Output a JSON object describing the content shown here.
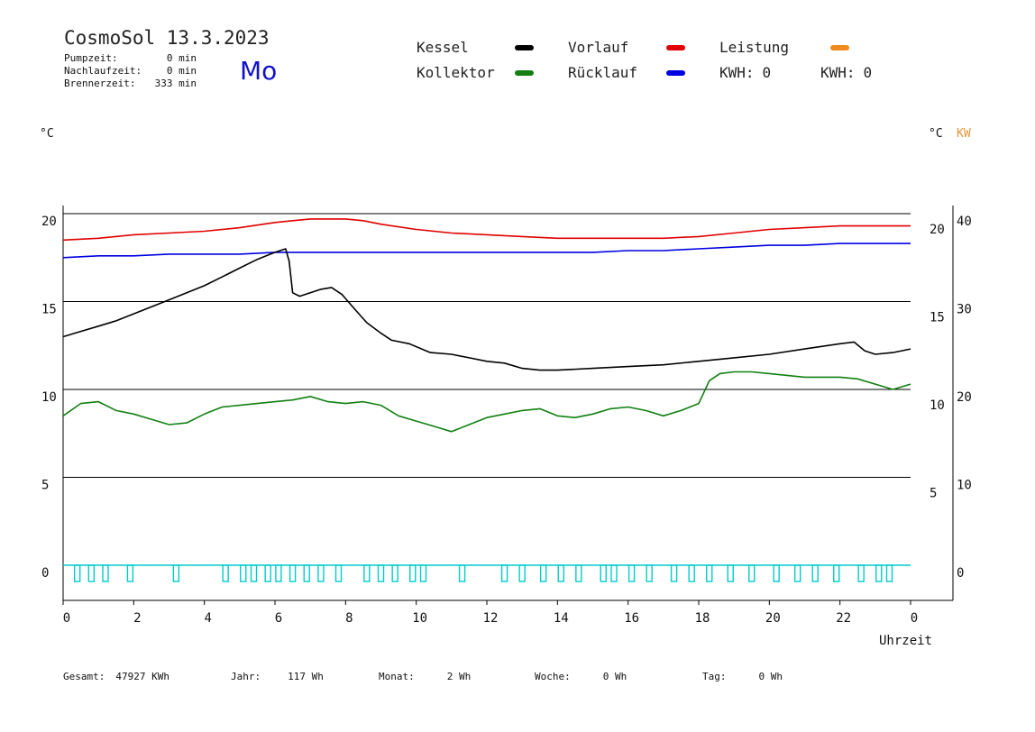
{
  "header": {
    "title": "CosmoSol 13.3.2023",
    "day": "Mo",
    "day_color": "#1111cc",
    "stats": [
      {
        "label": "Pumpzeit:",
        "value": "0 min"
      },
      {
        "label": "Nachlaufzeit:",
        "value": "0 min"
      },
      {
        "label": "Brennerzeit:",
        "value": "333 min"
      }
    ]
  },
  "legend": [
    {
      "label": "Kessel",
      "color": "#000000"
    },
    {
      "label": "Vorlauf",
      "color": "#e00000"
    },
    {
      "label": "Leistung",
      "color": "#f08a1c"
    },
    {
      "label": "Kollektor",
      "color": "#118011"
    },
    {
      "label": "Rücklauf",
      "color": "#0000e0"
    }
  ],
  "kwh": [
    {
      "label": "KWH:",
      "value": "0",
      "color": "#e8963a"
    },
    {
      "label": "KWH:",
      "value": "0",
      "color": "#993399"
    }
  ],
  "axis_units": {
    "left": "°C",
    "right": "°C",
    "right_power": "KW",
    "power_color": "#e8963a",
    "x_title": "Uhrzeit"
  },
  "footer": [
    {
      "label": "Gesamt:",
      "value": "47927 KWh"
    },
    {
      "label": "Jahr:",
      "value": "117 Wh"
    },
    {
      "label": "Monat:",
      "value": "2 Wh"
    },
    {
      "label": "Woche:",
      "value": "0 Wh"
    },
    {
      "label": "Tag:",
      "value": "0 Wh"
    }
  ],
  "chart_data": {
    "type": "line",
    "xlabel": "Uhrzeit",
    "ylabel": "°C",
    "xlim": [
      0,
      24
    ],
    "ylim_left": [
      -1.5,
      20.5
    ],
    "ylim_right_power": [
      0,
      40
    ],
    "grid": "horizontal",
    "x_ticks": [
      "0",
      "2",
      "4",
      "6",
      "8",
      "10",
      "12",
      "14",
      "16",
      "18",
      "20",
      "22",
      "0"
    ],
    "y_ticks_left": [
      "20",
      "15",
      "10",
      "5",
      "0"
    ],
    "y_ticks_right": [
      "20",
      "15",
      "10",
      "5"
    ],
    "y_ticks_right_power": [
      "40",
      "30",
      "20",
      "10",
      "0"
    ],
    "series": [
      {
        "name": "Vorlauf",
        "color": "#e00000",
        "x": [
          0,
          1,
          2,
          3,
          4,
          5,
          6,
          6.5,
          7,
          7.5,
          8,
          8.5,
          9,
          10,
          11,
          12,
          13,
          14,
          15,
          16,
          17,
          18,
          19,
          20,
          21,
          22,
          23,
          24
        ],
        "y": [
          18.5,
          18.6,
          18.8,
          18.9,
          19.0,
          19.2,
          19.5,
          19.6,
          19.7,
          19.7,
          19.7,
          19.6,
          19.4,
          19.1,
          18.9,
          18.8,
          18.7,
          18.6,
          18.6,
          18.6,
          18.6,
          18.7,
          18.9,
          19.1,
          19.2,
          19.3,
          19.3,
          19.3
        ]
      },
      {
        "name": "Rücklauf",
        "color": "#0000e0",
        "x": [
          0,
          1,
          2,
          3,
          4,
          5,
          6,
          7,
          8,
          9,
          10,
          11,
          12,
          13,
          14,
          15,
          16,
          17,
          18,
          19,
          20,
          21,
          22,
          23,
          24
        ],
        "y": [
          17.5,
          17.6,
          17.6,
          17.7,
          17.7,
          17.7,
          17.8,
          17.8,
          17.8,
          17.8,
          17.8,
          17.8,
          17.8,
          17.8,
          17.8,
          17.8,
          17.9,
          17.9,
          18.0,
          18.1,
          18.2,
          18.2,
          18.3,
          18.3,
          18.3
        ]
      },
      {
        "name": "Kessel",
        "color": "#000000",
        "x": [
          0,
          0.5,
          1,
          1.5,
          2,
          2.5,
          3,
          3.5,
          4,
          4.5,
          5,
          5.5,
          6,
          6.3,
          6.4,
          6.5,
          6.7,
          7,
          7.3,
          7.6,
          7.9,
          8.2,
          8.6,
          9.0,
          9.3,
          9.8,
          10.4,
          11,
          11.5,
          12,
          12.5,
          13,
          13.5,
          14,
          15,
          16,
          17,
          18,
          19,
          20,
          21,
          22,
          22.4,
          22.7,
          23,
          23.5,
          24
        ],
        "y": [
          13.0,
          13.3,
          13.6,
          13.9,
          14.3,
          14.7,
          15.1,
          15.5,
          15.9,
          16.4,
          16.9,
          17.4,
          17.8,
          18.0,
          17.3,
          15.5,
          15.3,
          15.5,
          15.7,
          15.8,
          15.4,
          14.7,
          13.8,
          13.2,
          12.8,
          12.6,
          12.1,
          12.0,
          11.8,
          11.6,
          11.5,
          11.2,
          11.1,
          11.1,
          11.2,
          11.3,
          11.4,
          11.6,
          11.8,
          12.0,
          12.3,
          12.6,
          12.7,
          12.2,
          12.0,
          12.1,
          12.3
        ]
      },
      {
        "name": "Kollektor",
        "color": "#118011",
        "x": [
          0,
          0.5,
          1,
          1.5,
          2,
          2.5,
          3,
          3.5,
          4,
          4.5,
          5,
          5.5,
          6,
          6.5,
          7,
          7.5,
          8,
          8.5,
          9,
          9.5,
          10,
          10.5,
          11,
          11.5,
          12,
          12.5,
          13,
          13.5,
          14,
          14.5,
          15,
          15.5,
          16,
          16.5,
          17,
          17.5,
          18,
          18.3,
          18.6,
          19,
          19.5,
          20,
          20.5,
          21,
          21.5,
          22,
          22.5,
          23,
          23.5,
          24
        ],
        "y": [
          8.5,
          9.2,
          9.3,
          8.8,
          8.6,
          8.3,
          8.0,
          8.1,
          8.6,
          9.0,
          9.1,
          9.2,
          9.3,
          9.4,
          9.6,
          9.3,
          9.2,
          9.3,
          9.1,
          8.5,
          8.2,
          7.9,
          7.6,
          8.0,
          8.4,
          8.6,
          8.8,
          8.9,
          8.5,
          8.4,
          8.6,
          8.9,
          9.0,
          8.8,
          8.5,
          8.8,
          9.2,
          10.5,
          10.9,
          11.0,
          11.0,
          10.9,
          10.8,
          10.7,
          10.7,
          10.7,
          10.6,
          10.3,
          10.0,
          10.3
        ]
      }
    ],
    "pump_pulses": [
      0.4,
      0.8,
      1.2,
      1.9,
      3.2,
      4.6,
      5.1,
      5.4,
      5.8,
      6.1,
      6.5,
      6.9,
      7.3,
      7.8,
      8.6,
      9.0,
      9.4,
      9.9,
      10.2,
      11.3,
      12.5,
      13.0,
      13.6,
      14.1,
      14.6,
      15.3,
      15.6,
      16.1,
      16.6,
      17.3,
      17.8,
      18.3,
      18.9,
      19.5,
      20.2,
      20.8,
      21.3,
      21.9,
      22.6,
      23.1,
      23.4
    ],
    "pump_color": "#00cccc"
  }
}
